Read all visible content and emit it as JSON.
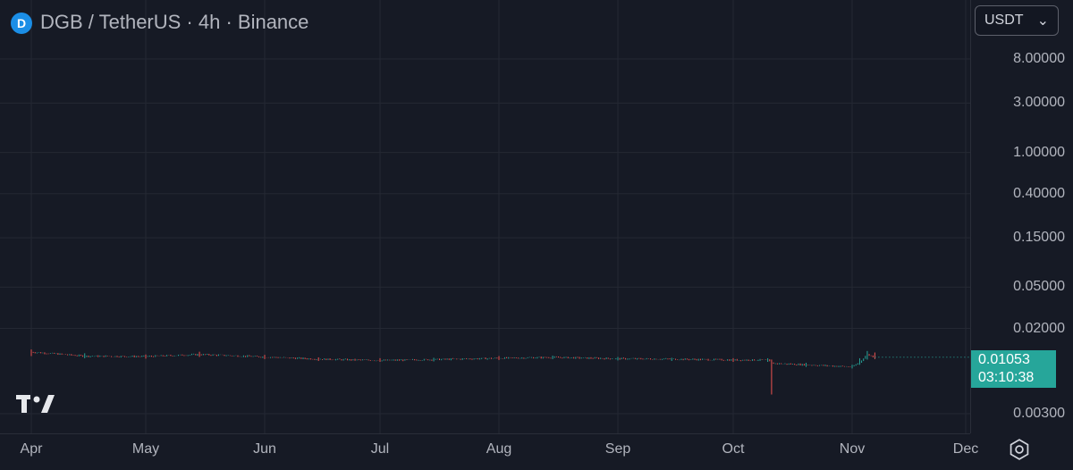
{
  "header": {
    "logo_letter": "D",
    "title": "DGB / TetherUS · 4h · Binance"
  },
  "currency": {
    "selected": "USDT"
  },
  "last_price": {
    "value": "0.01053",
    "countdown": "03:10:38",
    "color": "#26a69a"
  },
  "colors": {
    "background": "#161a25",
    "grid": "#242833",
    "up": "#26a69a",
    "down": "#ef5350"
  },
  "icons": {
    "brand": "tradingview-logo-icon",
    "settings": "settings-icon",
    "dropdown": "chevron-down-icon"
  },
  "chart_data": {
    "type": "candlestick",
    "scale": "log",
    "y_ticks": [
      "8.00000",
      "3.00000",
      "1.00000",
      "0.40000",
      "0.15000",
      "0.05000",
      "0.02000",
      "0.00300"
    ],
    "x_ticks": [
      "Apr",
      "May",
      "Jun",
      "Jul",
      "Aug",
      "Sep",
      "Oct",
      "Nov",
      "Dec"
    ],
    "series": [
      {
        "x": [
          "Apr 1",
          "Apr 15",
          "May 1",
          "May 15",
          "Jun 1",
          "Jun 15",
          "Jul 1",
          "Jul 15",
          "Aug 1",
          "Aug 15",
          "Sep 1",
          "Sep 15",
          "Oct 1",
          "Oct 10",
          "Oct 11",
          "Oct 20",
          "Nov 1",
          "Nov 3",
          "Nov 5",
          "Nov 7"
        ],
        "close": [
          0.0118,
          0.0108,
          0.0107,
          0.0112,
          0.0106,
          0.0101,
          0.0098,
          0.01,
          0.0103,
          0.0105,
          0.0102,
          0.0101,
          0.0099,
          0.0099,
          0.0092,
          0.0089,
          0.0085,
          0.0094,
          0.0112,
          0.0105
        ],
        "low": [
          0.0108,
          0.0103,
          0.0102,
          0.0106,
          0.0101,
          0.0097,
          0.0095,
          0.0096,
          0.0099,
          0.0101,
          0.0098,
          0.0097,
          0.0095,
          0.0095,
          0.0046,
          0.0085,
          0.0082,
          0.0089,
          0.01,
          0.0101
        ],
        "high": [
          0.0125,
          0.0115,
          0.0112,
          0.0119,
          0.0111,
          0.0105,
          0.0103,
          0.0104,
          0.0108,
          0.0109,
          0.0106,
          0.0104,
          0.0103,
          0.0103,
          0.01,
          0.0093,
          0.0089,
          0.0103,
          0.0121,
          0.0117
        ]
      }
    ]
  }
}
